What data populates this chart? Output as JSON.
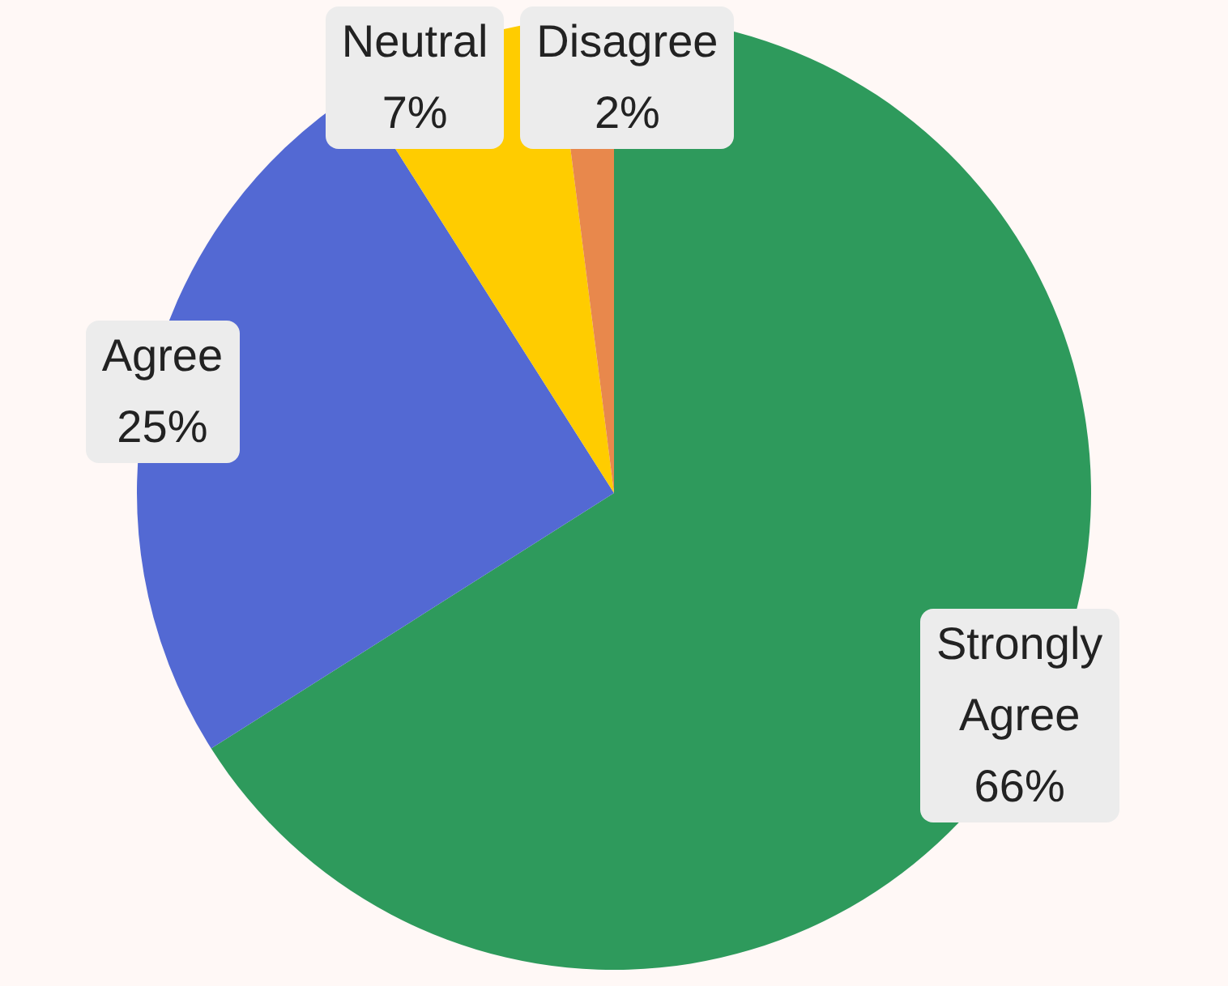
{
  "chart_data": {
    "type": "pie",
    "categories": [
      "Strongly Agree",
      "Agree",
      "Neutral",
      "Disagree"
    ],
    "values": [
      66,
      25,
      7,
      2
    ],
    "colors": [
      "#2e9a5c",
      "#5369d3",
      "#ffcc00",
      "#e8884c"
    ],
    "value_labels": [
      "66%",
      "25%",
      "7%",
      "2%"
    ],
    "legend": false
  }
}
